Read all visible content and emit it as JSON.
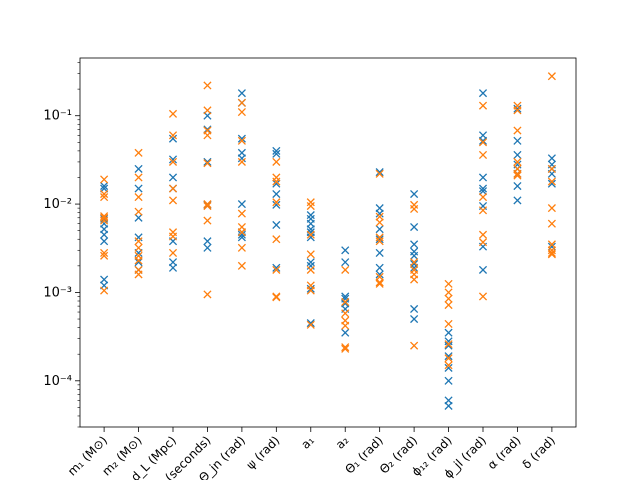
{
  "chart_data": {
    "type": "scatter",
    "title": "",
    "xlabel": "",
    "ylabel": "",
    "yscale": "log",
    "ylim": [
      3e-05,
      0.45
    ],
    "y_ticks": [
      {
        "value": 0.0001,
        "label": "10⁻⁴"
      },
      {
        "value": 0.001,
        "label": "10⁻³"
      },
      {
        "value": 0.01,
        "label": "10⁻²"
      },
      {
        "value": 0.1,
        "label": "10⁻¹"
      }
    ],
    "categories": [
      "m₁ (M⊙)",
      "m₂ (M⊙)",
      "d_L (Mpc)",
      "t_c (seconds)",
      "Θ_jn (rad)",
      "ψ (rad)",
      "a₁",
      "a₂",
      "Θ₁ (rad)",
      "Θ₂ (rad)",
      "ϕ₁₂ (rad)",
      "ϕ_jl (rad)",
      "α (rad)",
      "δ (rad)"
    ],
    "marker": "x",
    "grid": false,
    "series": [
      {
        "color": "#1f77b4",
        "values": [
          [
            0.016,
            0.015,
            0.0068,
            0.006,
            0.0052,
            0.0045,
            0.0038,
            0.0014,
            0.0012
          ],
          [
            0.025,
            0.015,
            0.007,
            0.0042,
            0.0028,
            0.0022,
            0.0018
          ],
          [
            0.055,
            0.032,
            0.02,
            0.015,
            0.0038,
            0.0022,
            0.0019
          ],
          [
            0.1,
            0.07,
            0.03,
            0.0098,
            0.0038,
            0.0032
          ],
          [
            0.18,
            0.14,
            0.055,
            0.038,
            0.033,
            0.01,
            0.0048,
            0.0045,
            0.0042
          ],
          [
            0.04,
            0.037,
            0.017,
            0.013,
            0.0098,
            0.0058,
            0.0019
          ],
          [
            0.0075,
            0.0068,
            0.006,
            0.0052,
            0.0048,
            0.0042,
            0.0022,
            0.002,
            0.0011,
            0.00045
          ],
          [
            0.003,
            0.0022,
            0.0009,
            0.00085,
            0.00075,
            0.00065,
            0.00035
          ],
          [
            0.023,
            0.009,
            0.0078,
            0.0052,
            0.004,
            0.0028,
            0.0019,
            0.0016
          ],
          [
            0.013,
            0.0055,
            0.0035,
            0.0029,
            0.0026,
            0.0021,
            0.0019,
            0.00065,
            0.0005
          ],
          [
            0.00035,
            0.00028,
            0.00025,
            0.00019,
            0.00014,
            0.0001,
            6e-05,
            5.2e-05
          ],
          [
            0.18,
            0.06,
            0.052,
            0.02,
            0.015,
            0.014,
            0.0095,
            0.0033,
            0.0018
          ],
          [
            0.12,
            0.052,
            0.036,
            0.028,
            0.025,
            0.022,
            0.016,
            0.011
          ],
          [
            0.033,
            0.028,
            0.025,
            0.022,
            0.017,
            0.0033
          ]
        ]
      },
      {
        "color": "#ff7f0e",
        "values": [
          [
            0.019,
            0.013,
            0.012,
            0.0073,
            0.007,
            0.0065,
            0.0028,
            0.0026,
            0.00105
          ],
          [
            0.038,
            0.02,
            0.012,
            0.0082,
            0.0038,
            0.0032,
            0.0026,
            0.0023,
            0.0018,
            0.0016
          ],
          [
            0.105,
            0.06,
            0.03,
            0.015,
            0.011,
            0.0048,
            0.0043,
            0.0028
          ],
          [
            0.22,
            0.115,
            0.068,
            0.06,
            0.029,
            0.01,
            0.0095,
            0.0065,
            0.00095
          ],
          [
            0.14,
            0.11,
            0.052,
            0.03,
            0.0078,
            0.0055,
            0.0048,
            0.0032,
            0.002
          ],
          [
            0.03,
            0.02,
            0.018,
            0.0105,
            0.004,
            0.0018,
            0.0009,
            0.00088
          ],
          [
            0.0105,
            0.0095,
            0.0045,
            0.0027,
            0.0018,
            0.0012,
            0.00105,
            0.00043
          ],
          [
            0.0018,
            0.00078,
            0.00058,
            0.00048,
            0.00042,
            0.00024,
            0.00023
          ],
          [
            0.022,
            0.0072,
            0.0062,
            0.0042,
            0.0038,
            0.0015,
            0.0013,
            0.00125
          ],
          [
            0.0098,
            0.0088,
            0.0022,
            0.0018,
            0.0016,
            0.0014,
            0.00025
          ],
          [
            0.00125,
            0.001,
            0.00085,
            0.00072,
            0.00044,
            0.00026,
            0.00018,
            0.00015
          ],
          [
            0.13,
            0.05,
            0.036,
            0.012,
            0.0085,
            0.0045,
            0.0037,
            0.0009
          ],
          [
            0.13,
            0.115,
            0.068,
            0.03,
            0.025,
            0.022,
            0.021
          ],
          [
            0.28,
            0.025,
            0.018,
            0.009,
            0.006,
            0.0035,
            0.003,
            0.0028,
            0.0027
          ]
        ]
      }
    ]
  }
}
